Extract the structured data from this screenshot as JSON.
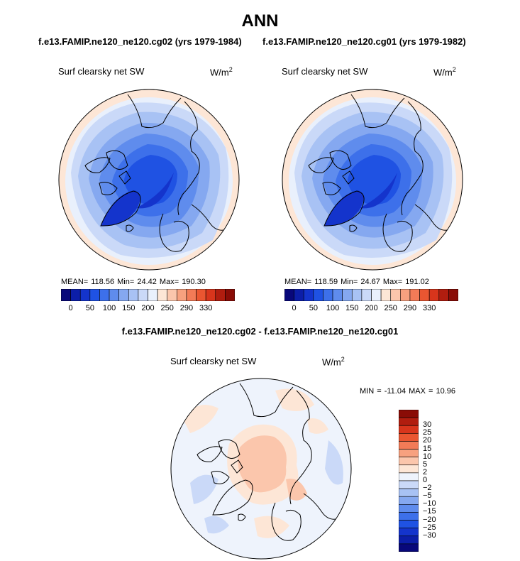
{
  "title": "ANN",
  "left_panel": {
    "case_title": "f.e13.FAMIP.ne120_ne120.cg02 (yrs 1979-1984)",
    "variable": "Surf clearsky net SW",
    "units_base": "W/m",
    "units_exp": "2",
    "stats": "MEAN= 118.56  Min=  24.42  Max= 190.30"
  },
  "right_panel": {
    "case_title": "f.e13.FAMIP.ne120_ne120.cg01 (yrs 1979-1982)",
    "variable": "Surf clearsky net SW",
    "units_base": "W/m",
    "units_exp": "2",
    "stats": "MEAN= 118.59  Min=  24.67  Max= 191.02"
  },
  "diff_panel": {
    "case_title": "f.e13.FAMIP.ne120_ne120.cg02 - f.e13.FAMIP.ne120_ne120.cg01",
    "variable": "Surf clearsky net SW",
    "units_base": "W/m",
    "units_exp": "2",
    "stats": "MIN = -11.04 MAX =  10.96"
  },
  "colorbar": {
    "colors": [
      "#08087a",
      "#0c1ea8",
      "#1434cc",
      "#1f52e3",
      "#3d70ea",
      "#5f8ced",
      "#85a8f0",
      "#a8c2f4",
      "#cad9f8",
      "#e9f0fc",
      "#fde6d6",
      "#fbc6ac",
      "#f7a17f",
      "#f27b57",
      "#ea5631",
      "#d8351c",
      "#b11d0f",
      "#8a0c06"
    ],
    "labels": [
      "0",
      "50",
      "100",
      "150",
      "200",
      "250",
      "290",
      "330"
    ],
    "label_index": [
      1,
      3,
      5,
      7,
      9,
      11,
      13,
      15
    ]
  },
  "diff_colorbar": {
    "colors": [
      "#8a0c06",
      "#b11d0f",
      "#d8351c",
      "#ea5631",
      "#f27b57",
      "#f7a17f",
      "#fbc6ac",
      "#fde6d6",
      "#eef3fc",
      "#cad9f8",
      "#a8c2f4",
      "#85a8f0",
      "#5f8ced",
      "#3d70ea",
      "#1f52e3",
      "#1434cc",
      "#0c1ea8",
      "#08087a"
    ],
    "labels": [
      "30",
      "25",
      "20",
      "15",
      "10",
      "5",
      "2",
      "0",
      "−2",
      "−5",
      "−10",
      "−15",
      "−20",
      "−25",
      "−30"
    ]
  }
}
